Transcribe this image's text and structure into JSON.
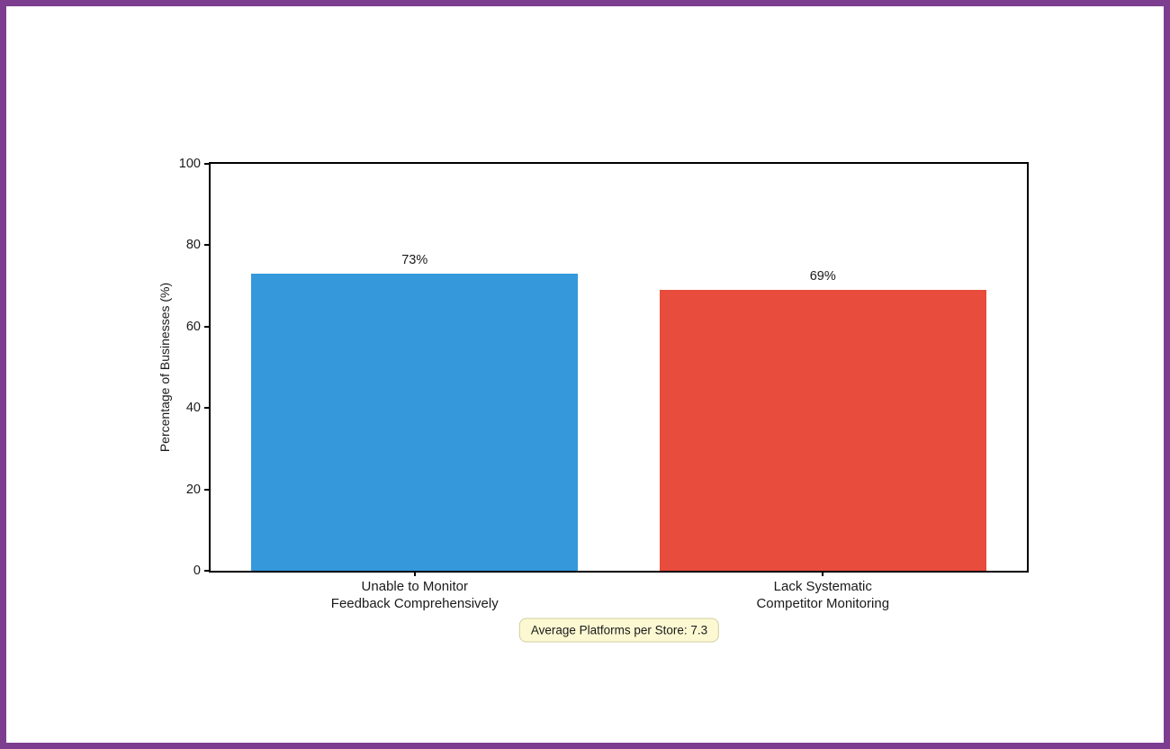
{
  "frame": {
    "border_color": "#7d3e90",
    "background": "#ffffff"
  },
  "chart_data": {
    "type": "bar",
    "categories": [
      [
        "Unable to Monitor",
        "Feedback Comprehensively"
      ],
      [
        "Lack Systematic",
        "Competitor Monitoring"
      ]
    ],
    "values": [
      73,
      69
    ],
    "bar_labels": [
      "73%",
      "69%"
    ],
    "bar_colors": [
      "#3498db",
      "#e74c3c"
    ],
    "title": "",
    "xlabel": "",
    "ylabel": "Percentage of Businesses (%)",
    "ylim": [
      0,
      100
    ],
    "yticks": [
      0,
      20,
      40,
      60,
      80,
      100
    ],
    "bar_width_fraction": 0.8,
    "grid": false,
    "legend": null,
    "annotation": "Average Platforms per Store: 7.3"
  }
}
